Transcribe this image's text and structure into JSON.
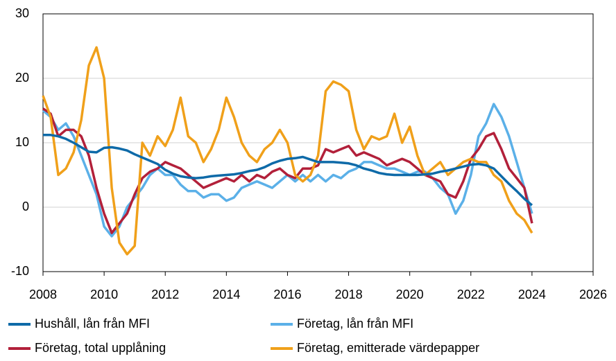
{
  "chart_data": {
    "type": "line",
    "x": [
      2008,
      2008.25,
      2008.5,
      2008.75,
      2009,
      2009.25,
      2009.5,
      2009.75,
      2010,
      2010.25,
      2010.5,
      2010.75,
      2011,
      2011.25,
      2011.5,
      2011.75,
      2012,
      2012.25,
      2012.5,
      2012.75,
      2013,
      2013.25,
      2013.5,
      2013.75,
      2014,
      2014.25,
      2014.5,
      2014.75,
      2015,
      2015.25,
      2015.5,
      2015.75,
      2016,
      2016.25,
      2016.5,
      2016.75,
      2017,
      2017.25,
      2017.5,
      2017.75,
      2018,
      2018.25,
      2018.5,
      2018.75,
      2019,
      2019.25,
      2019.5,
      2019.75,
      2020,
      2020.25,
      2020.5,
      2020.75,
      2021,
      2021.25,
      2021.5,
      2021.75,
      2022,
      2022.25,
      2022.5,
      2022.75,
      2023,
      2023.25,
      2023.5,
      2023.75,
      2024
    ],
    "series": [
      {
        "name": "Hushåll, lån från MFI",
        "color": "#0e6aa8",
        "values": [
          11.2,
          11.2,
          11.0,
          10.6,
          10.0,
          9.3,
          8.6,
          8.5,
          9.2,
          9.3,
          9.1,
          8.8,
          8.2,
          7.7,
          7.2,
          6.7,
          5.8,
          5.2,
          4.8,
          4.6,
          4.5,
          4.6,
          4.8,
          4.9,
          5.0,
          5.1,
          5.3,
          5.6,
          5.8,
          6.2,
          6.8,
          7.2,
          7.5,
          7.6,
          7.8,
          7.4,
          7.0,
          7.0,
          7.0,
          6.9,
          6.8,
          6.5,
          6.0,
          5.7,
          5.3,
          5.1,
          5.0,
          5.0,
          5.0,
          5.0,
          5.1,
          5.2,
          5.5,
          5.7,
          6.0,
          6.3,
          6.6,
          6.7,
          6.5,
          6.0,
          4.8,
          3.6,
          2.5,
          1.3,
          0.3
        ]
      },
      {
        "name": "Företag, lån från MFI",
        "color": "#5bb0e8",
        "values": [
          15,
          14,
          12,
          13,
          11,
          8,
          5,
          2,
          -3,
          -4.5,
          -3,
          0,
          1.5,
          3,
          5,
          6,
          5,
          5,
          3.5,
          2.5,
          2.5,
          1.5,
          2,
          2,
          1,
          1.5,
          3,
          3.5,
          4,
          3.5,
          3,
          4,
          5,
          4,
          5,
          4,
          5,
          4,
          5,
          4.5,
          5.5,
          6,
          7,
          7,
          6.5,
          6,
          6,
          5.5,
          5,
          5.5,
          5.5,
          4.5,
          3,
          2,
          -1,
          1,
          5,
          11,
          13,
          16,
          14,
          11,
          7,
          3,
          -1
        ]
      },
      {
        "name": "Företag, total upplåning",
        "color": "#b2203a",
        "values": [
          15.3,
          14.5,
          11,
          12,
          12,
          11,
          8,
          3,
          -1,
          -4,
          -2.5,
          -1,
          2,
          4.5,
          5.5,
          6,
          7,
          6.5,
          6,
          5,
          4,
          3,
          3.5,
          4,
          4.5,
          4,
          5,
          4,
          5,
          4.5,
          5.5,
          6,
          5,
          4.5,
          6,
          6,
          6.5,
          9,
          8.5,
          9,
          9.5,
          8,
          8.5,
          8,
          7.5,
          6.5,
          7,
          7.5,
          7,
          6,
          5,
          4.5,
          4,
          2,
          1.5,
          4,
          7.5,
          9,
          11,
          11.5,
          9,
          6,
          4.5,
          3,
          -2.5
        ]
      },
      {
        "name": "Företag, emitterade värdepapper",
        "color": "#f0a01a",
        "values": [
          17.3,
          14,
          5,
          6,
          8.5,
          13.5,
          22,
          24.8,
          20,
          3,
          -5.5,
          -7.3,
          -6,
          10,
          8,
          11,
          9.5,
          12,
          17,
          11,
          10,
          7,
          9,
          12,
          17,
          14,
          10,
          8,
          7,
          9,
          10,
          12,
          10,
          5,
          4,
          5,
          8,
          18,
          19.5,
          19,
          18,
          12,
          9,
          11,
          10.5,
          11,
          14.5,
          10,
          12.5,
          8,
          5,
          6,
          7,
          5,
          6,
          7,
          7.5,
          7,
          7,
          5,
          4,
          1,
          -1,
          -2,
          -4
        ]
      }
    ],
    "xlim": [
      2008,
      2026
    ],
    "xticks": [
      2008,
      2010,
      2012,
      2014,
      2016,
      2018,
      2020,
      2022,
      2024,
      2026
    ],
    "ylim": [
      -10,
      30
    ],
    "yticks": [
      -10,
      0,
      10,
      20,
      30
    ],
    "grid": true
  }
}
